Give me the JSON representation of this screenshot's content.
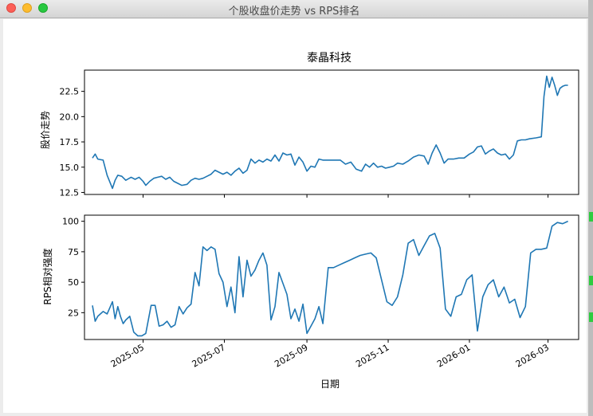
{
  "window": {
    "title": "个股收盘价走势 vs RPS排名"
  },
  "chart_data": [
    {
      "type": "line",
      "title": "泰晶科技",
      "ylabel": "股价走势",
      "xlabel": "",
      "ylim": [
        12.3,
        24.6
      ],
      "yticks": [
        "12.5",
        "15.0",
        "17.5",
        "20.0",
        "22.5"
      ],
      "xlim": [
        "2025-03-18",
        "2026-03-24"
      ],
      "line_color": "#1f77b4",
      "grid": false,
      "series": [
        {
          "x": [
            "2025-03-24",
            "2025-03-26",
            "2025-03-28",
            "2025-04-01",
            "2025-04-04",
            "2025-04-08",
            "2025-04-10",
            "2025-04-12",
            "2025-04-15",
            "2025-04-18",
            "2025-04-22",
            "2025-04-25",
            "2025-04-28",
            "2025-05-01",
            "2025-05-03",
            "2025-05-06",
            "2025-05-09",
            "2025-05-12",
            "2025-05-15",
            "2025-05-18",
            "2025-05-21",
            "2025-05-24",
            "2025-05-27",
            "2025-05-30",
            "2025-06-03",
            "2025-06-06",
            "2025-06-09",
            "2025-06-12",
            "2025-06-15",
            "2025-06-18",
            "2025-06-21",
            "2025-06-24",
            "2025-06-27",
            "2025-06-30",
            "2025-07-03",
            "2025-07-06",
            "2025-07-09",
            "2025-07-12",
            "2025-07-15",
            "2025-07-18",
            "2025-07-21",
            "2025-07-24",
            "2025-07-27",
            "2025-07-30",
            "2025-08-02",
            "2025-08-05",
            "2025-08-08",
            "2025-08-11",
            "2025-08-14",
            "2025-08-17",
            "2025-08-20",
            "2025-08-23",
            "2025-08-26",
            "2025-08-29",
            "2025-09-01",
            "2025-09-04",
            "2025-09-07",
            "2025-09-10",
            "2025-09-13",
            "2025-09-17",
            "2025-09-22",
            "2025-09-26",
            "2025-09-30",
            "2025-10-04",
            "2025-10-08",
            "2025-10-12",
            "2025-10-15",
            "2025-10-18",
            "2025-10-21",
            "2025-10-24",
            "2025-10-27",
            "2025-10-30",
            "2025-11-02",
            "2025-11-05",
            "2025-11-08",
            "2025-11-12",
            "2025-11-16",
            "2025-11-20",
            "2025-11-24",
            "2025-11-28",
            "2025-12-01",
            "2025-12-04",
            "2025-12-07",
            "2025-12-10",
            "2025-12-13",
            "2025-12-16",
            "2025-12-20",
            "2025-12-24",
            "2025-12-28",
            "2026-01-01",
            "2026-01-04",
            "2026-01-07",
            "2026-01-10",
            "2026-01-13",
            "2026-01-16",
            "2026-01-19",
            "2026-01-22",
            "2026-01-25",
            "2026-01-28",
            "2026-01-31",
            "2026-02-03",
            "2026-02-06",
            "2026-02-09",
            "2026-02-12",
            "2026-02-15",
            "2026-02-20",
            "2026-02-24",
            "2026-02-26",
            "2026-02-28",
            "2026-03-02",
            "2026-03-04",
            "2026-03-06",
            "2026-03-08",
            "2026-03-10",
            "2026-03-12",
            "2026-03-14",
            "2026-03-16"
          ],
          "values": [
            15.9,
            16.3,
            15.8,
            15.7,
            14.2,
            12.9,
            13.7,
            14.2,
            14.1,
            13.7,
            14.0,
            13.8,
            14.0,
            13.6,
            13.2,
            13.6,
            13.9,
            14.0,
            14.1,
            13.8,
            14.0,
            13.6,
            13.4,
            13.2,
            13.3,
            13.7,
            13.9,
            13.8,
            13.9,
            14.1,
            14.3,
            14.7,
            14.5,
            14.3,
            14.5,
            14.2,
            14.6,
            14.9,
            14.4,
            14.7,
            15.8,
            15.4,
            15.7,
            15.5,
            15.8,
            15.6,
            16.2,
            15.6,
            16.4,
            16.2,
            16.3,
            15.2,
            16.0,
            15.5,
            14.6,
            15.1,
            15.0,
            15.8,
            15.7,
            15.7,
            15.7,
            15.7,
            15.3,
            15.5,
            14.8,
            14.6,
            15.3,
            15.0,
            15.4,
            15.0,
            15.1,
            14.9,
            15.0,
            15.1,
            15.4,
            15.3,
            15.6,
            16.0,
            16.2,
            16.1,
            15.3,
            16.4,
            17.2,
            16.4,
            15.4,
            15.8,
            15.8,
            15.9,
            15.9,
            16.3,
            16.5,
            17.0,
            17.1,
            16.3,
            16.6,
            16.8,
            16.4,
            16.2,
            16.3,
            15.8,
            16.2,
            17.6,
            17.7,
            17.7,
            17.8,
            17.9,
            18.0,
            22.0,
            24.0,
            22.9,
            23.9,
            23.1,
            22.1,
            22.8,
            23.0,
            23.1,
            23.1
          ]
        }
      ]
    },
    {
      "type": "line",
      "title": "",
      "ylabel": "RPS相对强度",
      "xlabel": "日期",
      "ylim": [
        3,
        105
      ],
      "yticks": [
        "25",
        "50",
        "75",
        "100"
      ],
      "xlim": [
        "2025-03-18",
        "2026-03-24"
      ],
      "xticks": [
        "2025-05",
        "2025-07",
        "2025-09",
        "2025-11",
        "2026-01",
        "2026-03"
      ],
      "line_color": "#1f77b4",
      "grid": false,
      "series": [
        {
          "x": [
            "2025-03-24",
            "2025-03-26",
            "2025-03-28",
            "2025-04-01",
            "2025-04-04",
            "2025-04-06",
            "2025-04-08",
            "2025-04-10",
            "2025-04-12",
            "2025-04-14",
            "2025-04-16",
            "2025-04-18",
            "2025-04-21",
            "2025-04-24",
            "2025-04-27",
            "2025-04-30",
            "2025-05-03",
            "2025-05-07",
            "2025-05-10",
            "2025-05-13",
            "2025-05-16",
            "2025-05-19",
            "2025-05-22",
            "2025-05-25",
            "2025-05-28",
            "2025-05-31",
            "2025-06-03",
            "2025-06-06",
            "2025-06-09",
            "2025-06-12",
            "2025-06-15",
            "2025-06-18",
            "2025-06-21",
            "2025-06-24",
            "2025-06-27",
            "2025-06-30",
            "2025-07-03",
            "2025-07-06",
            "2025-07-09",
            "2025-07-12",
            "2025-07-15",
            "2025-07-18",
            "2025-07-21",
            "2025-07-24",
            "2025-07-27",
            "2025-07-30",
            "2025-08-02",
            "2025-08-05",
            "2025-08-08",
            "2025-08-11",
            "2025-08-14",
            "2025-08-17",
            "2025-08-20",
            "2025-08-23",
            "2025-08-26",
            "2025-08-29",
            "2025-09-01",
            "2025-09-04",
            "2025-09-07",
            "2025-09-10",
            "2025-09-13",
            "2025-09-17",
            "2025-09-21",
            "2025-09-25",
            "2025-09-29",
            "2025-10-03",
            "2025-10-07",
            "2025-10-11",
            "2025-10-15",
            "2025-10-19",
            "2025-10-23",
            "2025-10-27",
            "2025-10-31",
            "2025-11-04",
            "2025-11-08",
            "2025-11-12",
            "2025-11-16",
            "2025-11-20",
            "2025-11-24",
            "2025-11-28",
            "2025-12-02",
            "2025-12-06",
            "2025-12-10",
            "2025-12-14",
            "2025-12-18",
            "2025-12-22",
            "2025-12-26",
            "2025-12-30",
            "2026-01-03",
            "2026-01-07",
            "2026-01-11",
            "2026-01-15",
            "2026-01-19",
            "2026-01-23",
            "2026-01-27",
            "2026-01-31",
            "2026-02-04",
            "2026-02-08",
            "2026-02-12",
            "2026-02-16",
            "2026-02-20",
            "2026-02-24",
            "2026-02-28",
            "2026-03-04",
            "2026-03-08",
            "2026-03-12",
            "2026-03-16"
          ],
          "values": [
            31,
            18,
            22,
            26,
            24,
            29,
            34,
            20,
            30,
            22,
            16,
            19,
            22,
            9,
            6,
            6,
            8,
            31,
            31,
            14,
            15,
            18,
            13,
            15,
            30,
            24,
            29,
            32,
            58,
            47,
            79,
            76,
            79,
            77,
            57,
            50,
            30,
            46,
            25,
            71,
            38,
            68,
            55,
            60,
            68,
            74,
            64,
            19,
            30,
            58,
            49,
            40,
            20,
            28,
            18,
            32,
            8,
            14,
            20,
            30,
            16,
            62,
            62,
            64,
            66,
            68,
            70,
            72,
            73,
            74,
            70,
            52,
            34,
            31,
            38,
            56,
            82,
            85,
            72,
            80,
            88,
            90,
            78,
            28,
            22,
            38,
            40,
            52,
            56,
            10,
            38,
            48,
            52,
            38,
            46,
            33,
            36,
            21,
            30,
            74,
            77,
            77,
            78,
            96,
            99,
            98,
            100
          ]
        }
      ]
    }
  ]
}
